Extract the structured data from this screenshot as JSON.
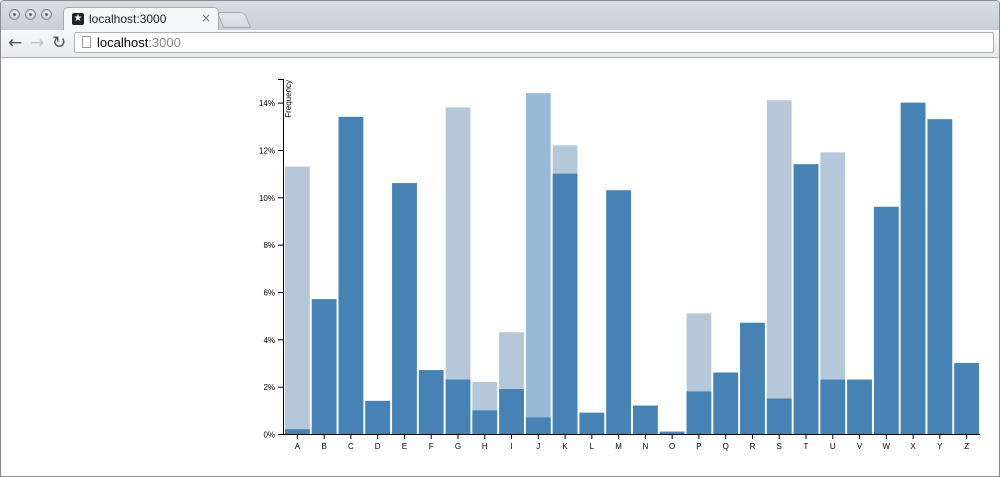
{
  "browser": {
    "tab_title": "localhost:3000",
    "tab_close": "×",
    "favicon_glyph": "★",
    "url_host": "localhost",
    "url_port": ":3000",
    "nav": {
      "back": "←",
      "forward": "→",
      "reload": "↻"
    }
  },
  "chart_data": {
    "type": "bar",
    "title": "",
    "xlabel": "",
    "ylabel": "Frequency",
    "ylim": [
      0,
      15
    ],
    "yticks": [
      0,
      2,
      4,
      6,
      8,
      10,
      12,
      14
    ],
    "ytick_labels": [
      "0%",
      "2%",
      "4%",
      "6%",
      "8%",
      "10%",
      "12%",
      "14%"
    ],
    "grid": false,
    "colors": {
      "dark": "#4682b4",
      "light": "#b4c8da",
      "lighter": "#98b9d6"
    },
    "categories": [
      "A",
      "B",
      "C",
      "D",
      "E",
      "F",
      "G",
      "H",
      "I",
      "J",
      "K",
      "L",
      "M",
      "N",
      "O",
      "P",
      "Q",
      "R",
      "S",
      "T",
      "U",
      "V",
      "W",
      "X",
      "Y",
      "Z"
    ],
    "series": [
      {
        "values": [
          0.2,
          5.7,
          13.4,
          1.4,
          10.6,
          2.7,
          2.3,
          1.0,
          1.9,
          0.7,
          11.0,
          0.9,
          10.3,
          1.2,
          0.1,
          1.8,
          2.6,
          4.7,
          1.5,
          11.4,
          2.3,
          2.3,
          9.6,
          14.0,
          13.3,
          3.0
        ]
      },
      {
        "values": [
          11.3,
          5.7,
          13.4,
          1.4,
          10.6,
          2.7,
          13.8,
          2.2,
          4.3,
          14.4,
          12.2,
          0.9,
          10.3,
          1.2,
          0.1,
          5.1,
          2.6,
          4.7,
          14.1,
          11.4,
          11.9,
          2.3,
          9.6,
          14.0,
          13.3,
          3.0
        ]
      }
    ]
  }
}
